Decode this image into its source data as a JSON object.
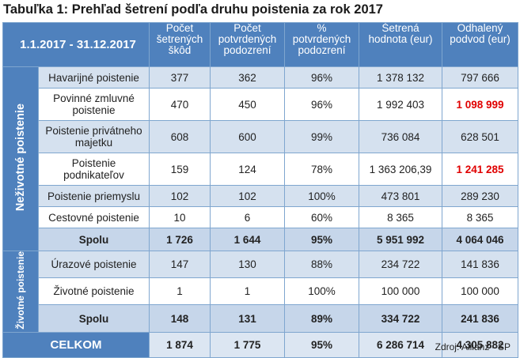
{
  "title": "Tabuľka 1: Prehľad šetrení podľa druhu poistenia za rok 2017",
  "header": {
    "period": "1.1.2017 - 31.12.2017",
    "col1": "Počet šetrených škôd",
    "col2": "Počet potvrdených podozrení",
    "col3": "% potvrdených podozrení",
    "col4": "Šetrená hodnota (eur)",
    "col5": "Odhalený podvod (eur)"
  },
  "groups": [
    {
      "label": "Neživotné poistenie",
      "rows": [
        {
          "name": "Havarijné poistenie",
          "v1": "377",
          "v2": "362",
          "v3": "96%",
          "v4": "1 378 132",
          "v5": "797 666",
          "highlight": false
        },
        {
          "name": "Povinné zmluvné poistenie",
          "v1": "470",
          "v2": "450",
          "v3": "96%",
          "v4": "1 992 403",
          "v5": "1 098 999",
          "highlight": true
        },
        {
          "name": "Poistenie privátneho majetku",
          "v1": "608",
          "v2": "600",
          "v3": "99%",
          "v4": "736 084",
          "v5": "628 501",
          "highlight": false
        },
        {
          "name": "Poistenie podnikateľov",
          "v1": "159",
          "v2": "124",
          "v3": "78%",
          "v4": "1 363 206,39",
          "v5": "1 241 285",
          "highlight": true
        },
        {
          "name": "Poistenie priemyslu",
          "v1": "102",
          "v2": "102",
          "v3": "100%",
          "v4": "473 801",
          "v5": "289 230",
          "highlight": false
        },
        {
          "name": "Cestovné poistenie",
          "v1": "10",
          "v2": "6",
          "v3": "60%",
          "v4": "8 365",
          "v5": "8 365",
          "highlight": false
        }
      ],
      "sum": {
        "name": "Spolu",
        "v1": "1 726",
        "v2": "1 644",
        "v3": "95%",
        "v4": "5 951 992",
        "v5": "4 064 046"
      }
    },
    {
      "label": "Životné poistenie",
      "rows": [
        {
          "name": "Úrazové poistenie",
          "v1": "147",
          "v2": "130",
          "v3": "88%",
          "v4": "234 722",
          "v5": "141 836",
          "highlight": false
        },
        {
          "name": "Životné poistenie",
          "v1": "1",
          "v2": "1",
          "v3": "100%",
          "v4": "100 000",
          "v5": "100 000",
          "highlight": false
        }
      ],
      "sum": {
        "name": "Spolu",
        "v1": "148",
        "v2": "131",
        "v3": "89%",
        "v4": "334 722",
        "v5": "241 836"
      }
    }
  ],
  "total": {
    "name": "CELKOM",
    "v1": "1 874",
    "v2": "1 775",
    "v3": "95%",
    "v4": "6 286 714",
    "v5": "4 305 882"
  },
  "source": "Zdroj: Allianz - SP",
  "colors": {
    "header": "#4f81bd",
    "highlight": "#e00000"
  }
}
